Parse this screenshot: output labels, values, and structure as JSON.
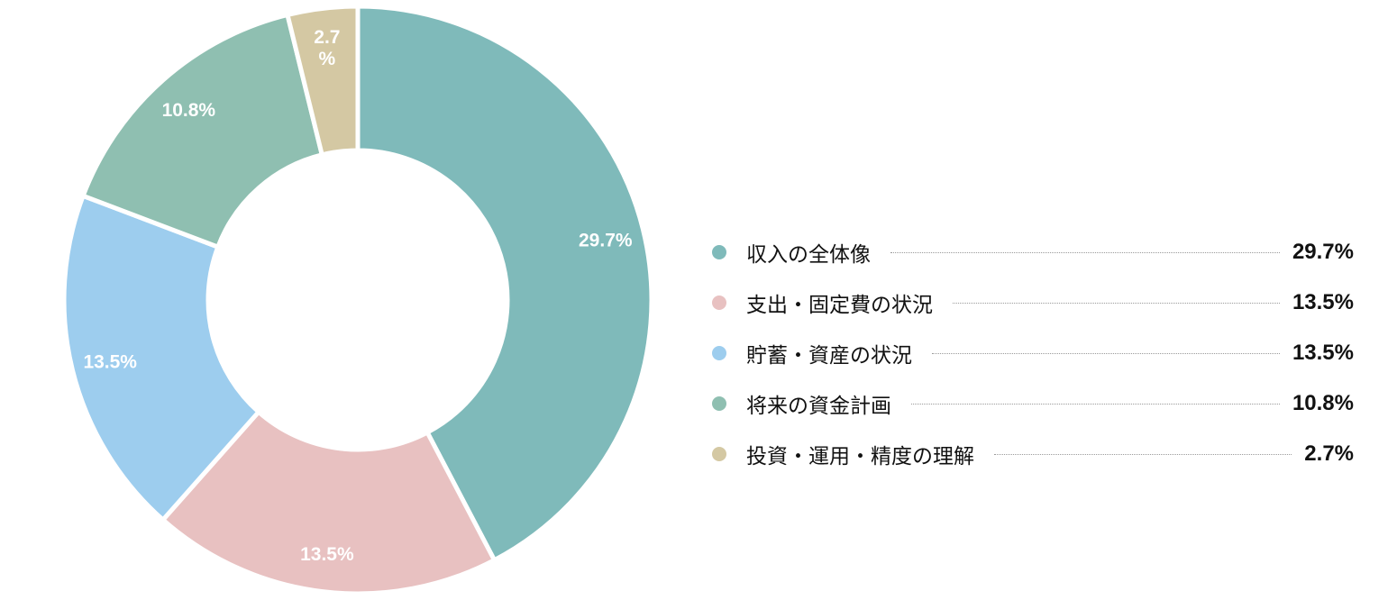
{
  "chart_data": {
    "type": "pie",
    "variant": "donut",
    "categories": [
      "収入の全体像",
      "支出・固定費の状況",
      "貯蓄・資産の状況",
      "将来の資金計画",
      "投資・運用・精度の理解"
    ],
    "values": [
      29.7,
      13.5,
      13.5,
      10.8,
      2.7
    ],
    "unit": "%",
    "slice_labels": [
      "29.7%",
      "13.5%",
      "13.5%",
      "10.8%",
      "2.7\n%"
    ],
    "value_labels": [
      "29.7%",
      "13.5%",
      "13.5%",
      "10.8%",
      "2.7%"
    ],
    "colors": [
      "#7fbaba",
      "#e8c1c1",
      "#9dcdee",
      "#8fbfb1",
      "#d4c8a3"
    ],
    "start": "12 o'clock, clockwise",
    "legend_position": "right"
  }
}
